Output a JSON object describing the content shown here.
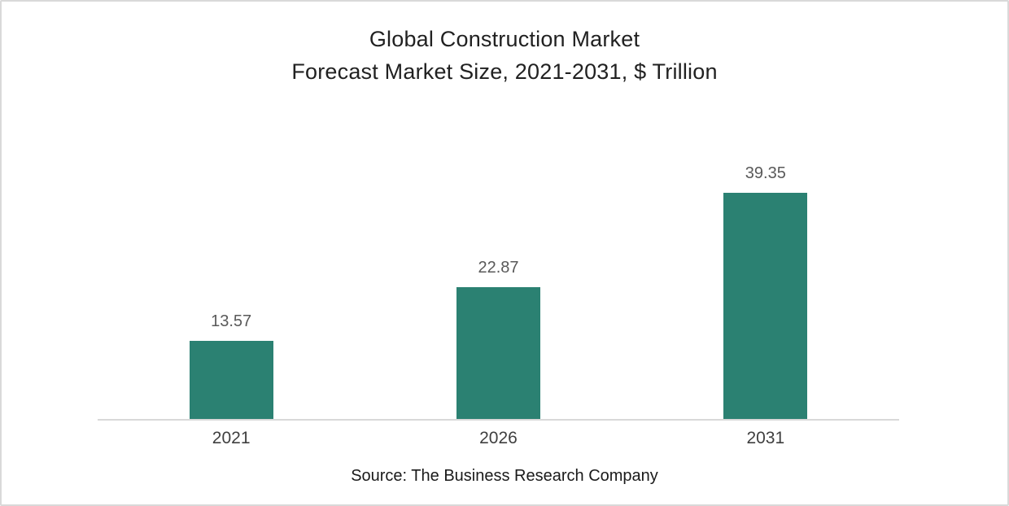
{
  "page": {
    "background_color": "#ffffff",
    "border_color": "#d9d9d9"
  },
  "chart": {
    "title_line1": "Global Construction Market",
    "title_line2": "Forecast Market Size, 2021-2031, $ Trillion",
    "source": "Source: The Business Research Company"
  },
  "chart_data": {
    "type": "bar",
    "title": "Global Construction Market Forecast Market Size, 2021-2031, $ Trillion",
    "categories": [
      "2021",
      "2026",
      "2031"
    ],
    "values": [
      13.57,
      22.87,
      39.35
    ],
    "value_labels": [
      "13.57",
      "22.87",
      "39.35"
    ],
    "xlabel": "",
    "ylabel": "",
    "units": "$ Trillion",
    "ylim": [
      0,
      45
    ],
    "grid": false,
    "legend": "none",
    "bar_color": "#2b8172",
    "value_label_color": "#595959",
    "category_label_color": "#3f3f3f",
    "axis_line_color": "#d9d9d9",
    "source": "Source: The Business Research Company"
  }
}
